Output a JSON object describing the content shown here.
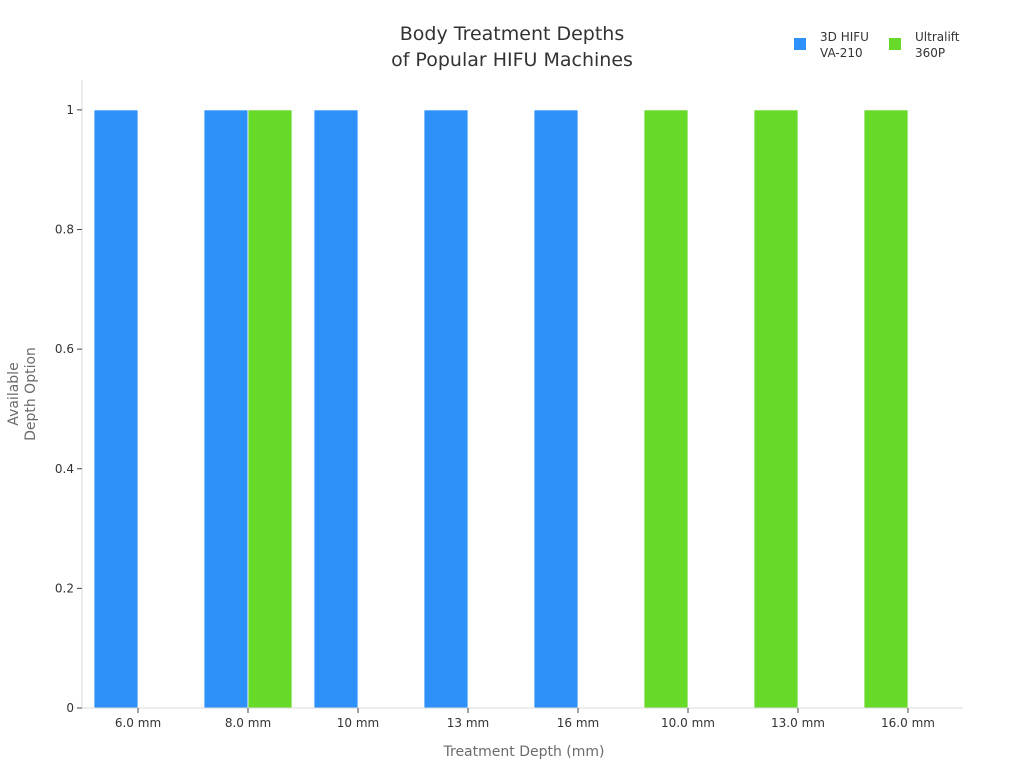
{
  "chart_data": {
    "type": "bar",
    "title_lines": [
      "Body Treatment Depths",
      "of Popular HIFU Machines"
    ],
    "xlabel": "Treatment Depth (mm)",
    "ylabel_lines": [
      "Available",
      "Depth Option"
    ],
    "categories": [
      "6.0 mm",
      "8.0 mm",
      "10 mm",
      "13 mm",
      "16 mm",
      "10.0 mm",
      "13.0 mm",
      "16.0 mm"
    ],
    "series": [
      {
        "name_lines": [
          "3D HIFU",
          "VA-210"
        ],
        "color": "#2e91fa",
        "values": [
          1,
          1,
          1,
          1,
          1,
          0,
          0,
          0
        ]
      },
      {
        "name_lines": [
          "Ultralift",
          "360P"
        ],
        "color": "#66d929",
        "values": [
          0,
          1,
          0,
          0,
          0,
          1,
          1,
          1
        ]
      }
    ],
    "ylim": [
      0,
      1.05
    ],
    "yticks": [
      0,
      0.2,
      0.4,
      0.6,
      0.8,
      1
    ],
    "ytick_labels": [
      "0",
      "0.2",
      "0.4",
      "0.6",
      "0.8",
      "1"
    ],
    "grid": false,
    "legend_position": "top-right"
  }
}
